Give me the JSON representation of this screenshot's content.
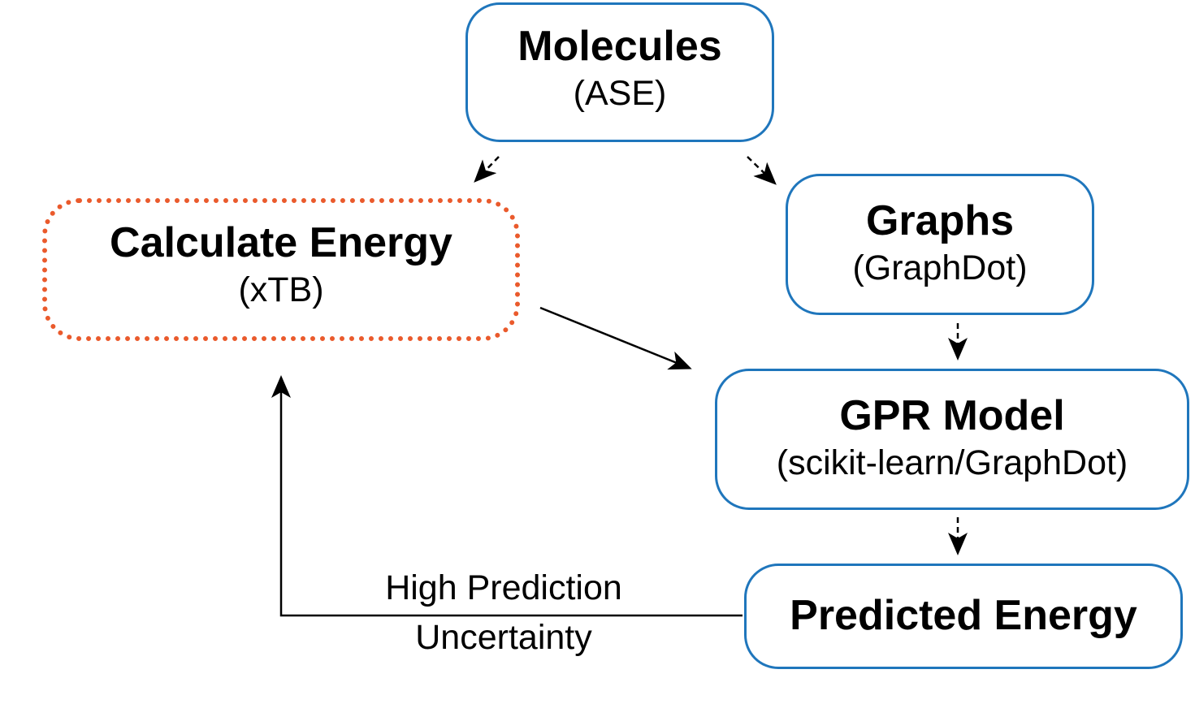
{
  "nodes": {
    "molecules": {
      "title": "Molecules",
      "subtitle": "(ASE)"
    },
    "calculate_energy": {
      "title": "Calculate Energy",
      "subtitle": "(xTB)"
    },
    "graphs": {
      "title": "Graphs",
      "subtitle": "(GraphDot)"
    },
    "gpr_model": {
      "title": "GPR Model",
      "subtitle": "(scikit-learn/GraphDot)"
    },
    "predicted_energy": {
      "title": "Predicted Energy"
    }
  },
  "edges": {
    "feedback_label_line1": "High Prediction",
    "feedback_label_line2": "Uncertainty"
  },
  "colors": {
    "box_border": "#1f76bc",
    "dashed_box_border": "#ea5a2c",
    "arrow": "#000000"
  }
}
